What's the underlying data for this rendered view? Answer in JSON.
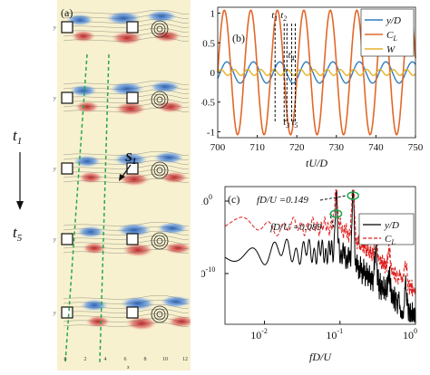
{
  "panel_a": {
    "label": "(a)",
    "time_start": "t",
    "time_start_sub": "1",
    "time_end": "t",
    "time_end_sub": "5",
    "annotation": "S",
    "annotation_sub": "1",
    "y_axis_label": "y",
    "x_axis_label": "x",
    "x_ticks": [
      "0",
      "2",
      "4",
      "6",
      "8",
      "10",
      "12"
    ]
  },
  "chart_data": [
    {
      "type": "line",
      "panel_label": "(b)",
      "xlabel": "tU/D",
      "ylabel": "",
      "xlim": [
        700,
        750
      ],
      "ylim": [
        -1.1,
        1.1
      ],
      "x_ticks": [
        700,
        710,
        720,
        730,
        740,
        750
      ],
      "y_ticks": [
        -1,
        -0.5,
        0,
        0.5,
        1
      ],
      "grid": false,
      "legend_position": "top-right",
      "series": [
        {
          "name": "y/D",
          "color": "#2f7fc1",
          "amplitude": 0.18,
          "period": 6.7
        },
        {
          "name": "C_L",
          "color": "#e2682a",
          "amplitude": 1.05,
          "period": 6.7
        },
        {
          "name": "W",
          "color": "#e7b12a",
          "amplitude": 0.05,
          "period": 3.35
        }
      ],
      "time_markers": [
        "t1",
        "t2",
        "t3",
        "t4",
        "t5"
      ],
      "time_marker_x": [
        714.5,
        716.8,
        717.5,
        718.7,
        719.6
      ]
    },
    {
      "type": "line",
      "panel_label": "(c)",
      "xlabel": "fD/U",
      "ylabel": "",
      "x_scale": "log",
      "y_scale": "log",
      "xlim": [
        0.003,
        1
      ],
      "ylim": [
        1e-17,
        100.0
      ],
      "x_ticks": [
        "10^{-2}",
        "10^{-1}",
        "10^{0}"
      ],
      "y_ticks": [
        "10^{0}",
        "10^{-10}"
      ],
      "legend_position": "top-right",
      "series": [
        {
          "name": "y/D",
          "color": "#000000",
          "style": "solid"
        },
        {
          "name": "C_L",
          "color": "#e02020",
          "style": "dashed"
        }
      ],
      "peaks": [
        {
          "label": "fD/U =0.149",
          "x": 0.149
        },
        {
          "label": "fD/U =0.089",
          "x": 0.089
        }
      ]
    }
  ]
}
